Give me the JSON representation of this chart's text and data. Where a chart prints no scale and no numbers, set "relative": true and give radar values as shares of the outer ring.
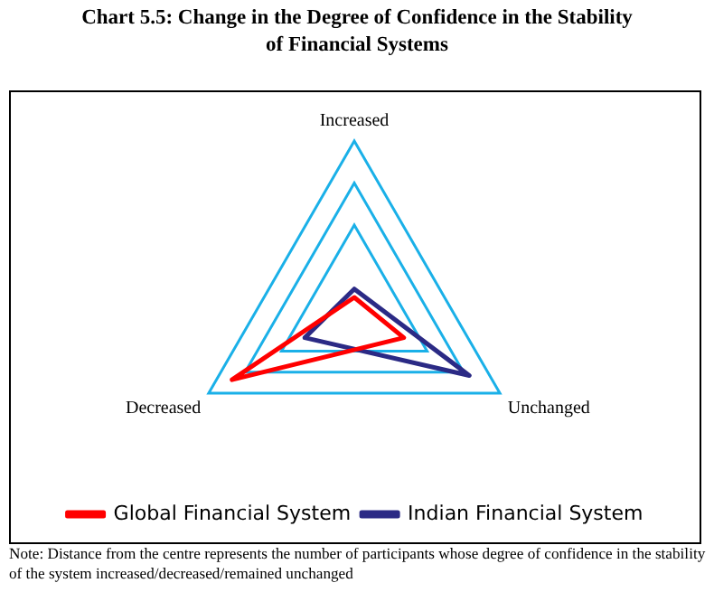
{
  "chart_data": {
    "type": "radar",
    "title": "Chart 5.5: Change in the Degree of Confidence in the Stability of Financial Systems",
    "categories": [
      "Increased",
      "Unchanged",
      "Decreased"
    ],
    "relative": true,
    "grid": true,
    "legend": "bottom",
    "marker": "none",
    "series": [
      {
        "name": "Global Financial System",
        "color": "#ff0000",
        "values": [
          0.07,
          0.34,
          0.84
        ]
      },
      {
        "name": "Indian Financial System",
        "color": "#2b2a85",
        "values": [
          0.12,
          0.79,
          0.34
        ]
      }
    ],
    "annotations": [
      "Note: Distance from the centre represents the number of participants whose degree of confidence in the stability of the system increased/decreased/remained unchanged"
    ]
  }
}
